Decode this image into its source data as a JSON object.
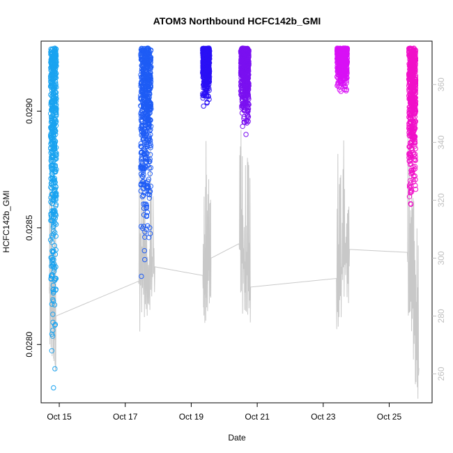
{
  "chart_data": {
    "type": "scatter",
    "title": "ATOM3 Northbound HCFC142b_GMI",
    "xlabel": "Date",
    "ylabel": "HCFC142b_GMI",
    "x_ticks": [
      "Oct 15",
      "Oct 17",
      "Oct 19",
      "Oct 21",
      "Oct 23",
      "Oct 25"
    ],
    "x_tick_values": [
      15,
      17,
      19,
      21,
      23,
      25
    ],
    "xlim": [
      14.45,
      26.3
    ],
    "ylim": [
      0.02775,
      0.0293
    ],
    "y_ticks": [
      "0.0280",
      "0.0285",
      "0.0290"
    ],
    "y_tick_values": [
      0.028,
      0.0285,
      0.029
    ],
    "y2_lim": [
      250,
      375
    ],
    "y2_ticks": [
      "260",
      "280",
      "300",
      "320",
      "340",
      "360"
    ],
    "y2_tick_values": [
      260,
      280,
      300,
      320,
      340,
      360
    ],
    "grid": false,
    "colors": {
      "secondary_line": "#c8c8c8",
      "axis": "#000000",
      "right_axis": "#bfbfbf"
    },
    "series": [
      {
        "color": "#1aa3f0",
        "x_range": [
          14.7,
          14.95
        ],
        "y_min": 0.02777,
        "y_max": 0.02927
      },
      {
        "color": "#1e5cf5",
        "x_range": [
          17.4,
          17.85
        ],
        "y_min": 0.02824,
        "y_max": 0.02927
      },
      {
        "color": "#2a10f5",
        "x_range": [
          19.3,
          19.6
        ],
        "y_min": 0.029,
        "y_max": 0.02927
      },
      {
        "color": "#7a10f0",
        "x_range": [
          20.45,
          20.8
        ],
        "y_min": 0.02889,
        "y_max": 0.02927
      },
      {
        "color": "#d810f5",
        "x_range": [
          23.35,
          23.8
        ],
        "y_min": 0.02905,
        "y_max": 0.02927
      },
      {
        "color": "#f010c8",
        "x_range": [
          25.55,
          25.85
        ],
        "y_min": 0.0285,
        "y_max": 0.02927
      }
    ],
    "secondary_series": {
      "axis": "right",
      "color": "#c8c8c8",
      "trend": [
        [
          14.7,
          290
        ],
        [
          14.9,
          280
        ],
        [
          17.4,
          292
        ],
        [
          17.9,
          297
        ],
        [
          19.35,
          294
        ],
        [
          19.6,
          300
        ],
        [
          20.45,
          305
        ],
        [
          20.8,
          290
        ],
        [
          23.4,
          293
        ],
        [
          23.8,
          303
        ],
        [
          25.55,
          302
        ],
        [
          25.9,
          262
        ]
      ]
    }
  }
}
